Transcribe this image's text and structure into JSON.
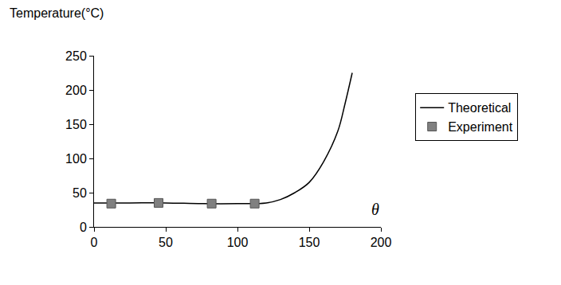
{
  "chart_data": {
    "type": "line",
    "y_label": "Temperature(°C)",
    "x_label": "θ",
    "xlim": [
      0,
      200
    ],
    "xticks": [
      0,
      50,
      100,
      150,
      200
    ],
    "ylim": [
      0,
      250
    ],
    "yticks": [
      0,
      50,
      100,
      150,
      200,
      250
    ],
    "grid": false,
    "legend": "right",
    "series": [
      {
        "name": "Theoretical",
        "type": "line",
        "color": "#000000",
        "line_style": "solid",
        "x": [
          0,
          25,
          50,
          75,
          100,
          120,
          130,
          140,
          150,
          160,
          170,
          175,
          180
        ],
        "values": [
          35,
          35,
          35,
          34,
          34,
          35,
          40,
          50,
          65,
          95,
          140,
          180,
          225
        ]
      },
      {
        "name": "Experiment",
        "type": "scatter",
        "color": "#808080",
        "marker": "square",
        "x": [
          12,
          45,
          82,
          112
        ],
        "values": [
          34,
          35,
          34,
          34
        ]
      }
    ]
  }
}
